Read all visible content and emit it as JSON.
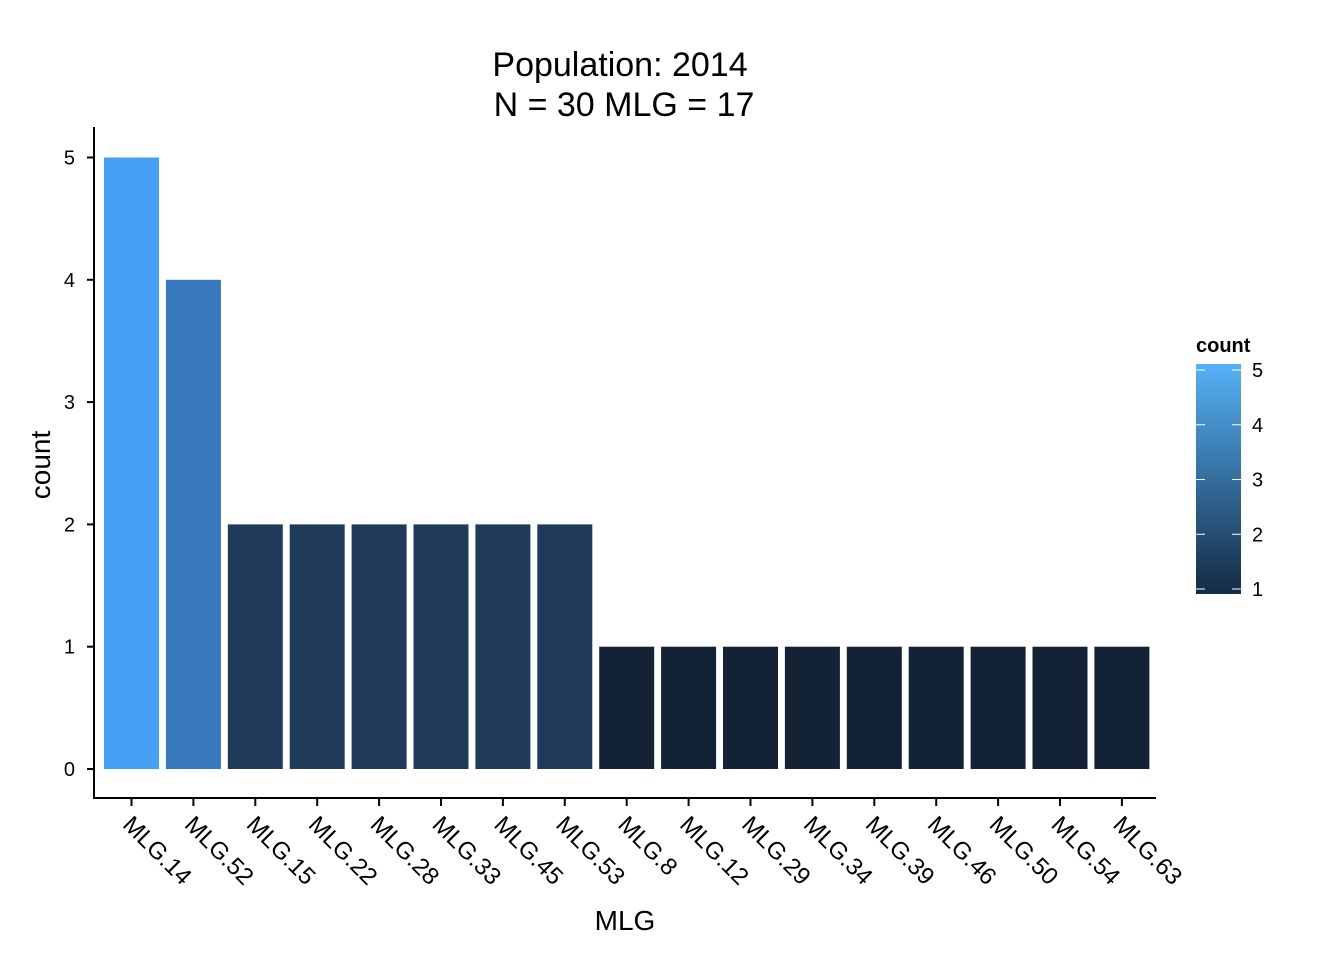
{
  "chart_data": {
    "type": "bar",
    "title": "Population: 2014",
    "subtitle": "N = 30 MLG = 17",
    "xlabel": "MLG",
    "ylabel": "count",
    "categories": [
      "MLG.14",
      "MLG.52",
      "MLG.15",
      "MLG.22",
      "MLG.28",
      "MLG.33",
      "MLG.45",
      "MLG.53",
      "MLG.8",
      "MLG.12",
      "MLG.29",
      "MLG.34",
      "MLG.39",
      "MLG.46",
      "MLG.50",
      "MLG.54",
      "MLG.63"
    ],
    "values": [
      5,
      4,
      2,
      2,
      2,
      2,
      2,
      2,
      1,
      1,
      1,
      1,
      1,
      1,
      1,
      1,
      1
    ],
    "ylim": [
      0,
      5
    ],
    "yticks": [
      0,
      1,
      2,
      3,
      4,
      5
    ],
    "grid": false,
    "legend": {
      "title": "count",
      "position": "right",
      "ticks": [
        1,
        2,
        3,
        4,
        5
      ],
      "low_color": "#132B43",
      "high_color": "#56B1F7"
    },
    "colors": {
      "1": "#132335",
      "2": "#1F3A5A",
      "4": "#3777BD",
      "5": "#46A0F4"
    }
  }
}
